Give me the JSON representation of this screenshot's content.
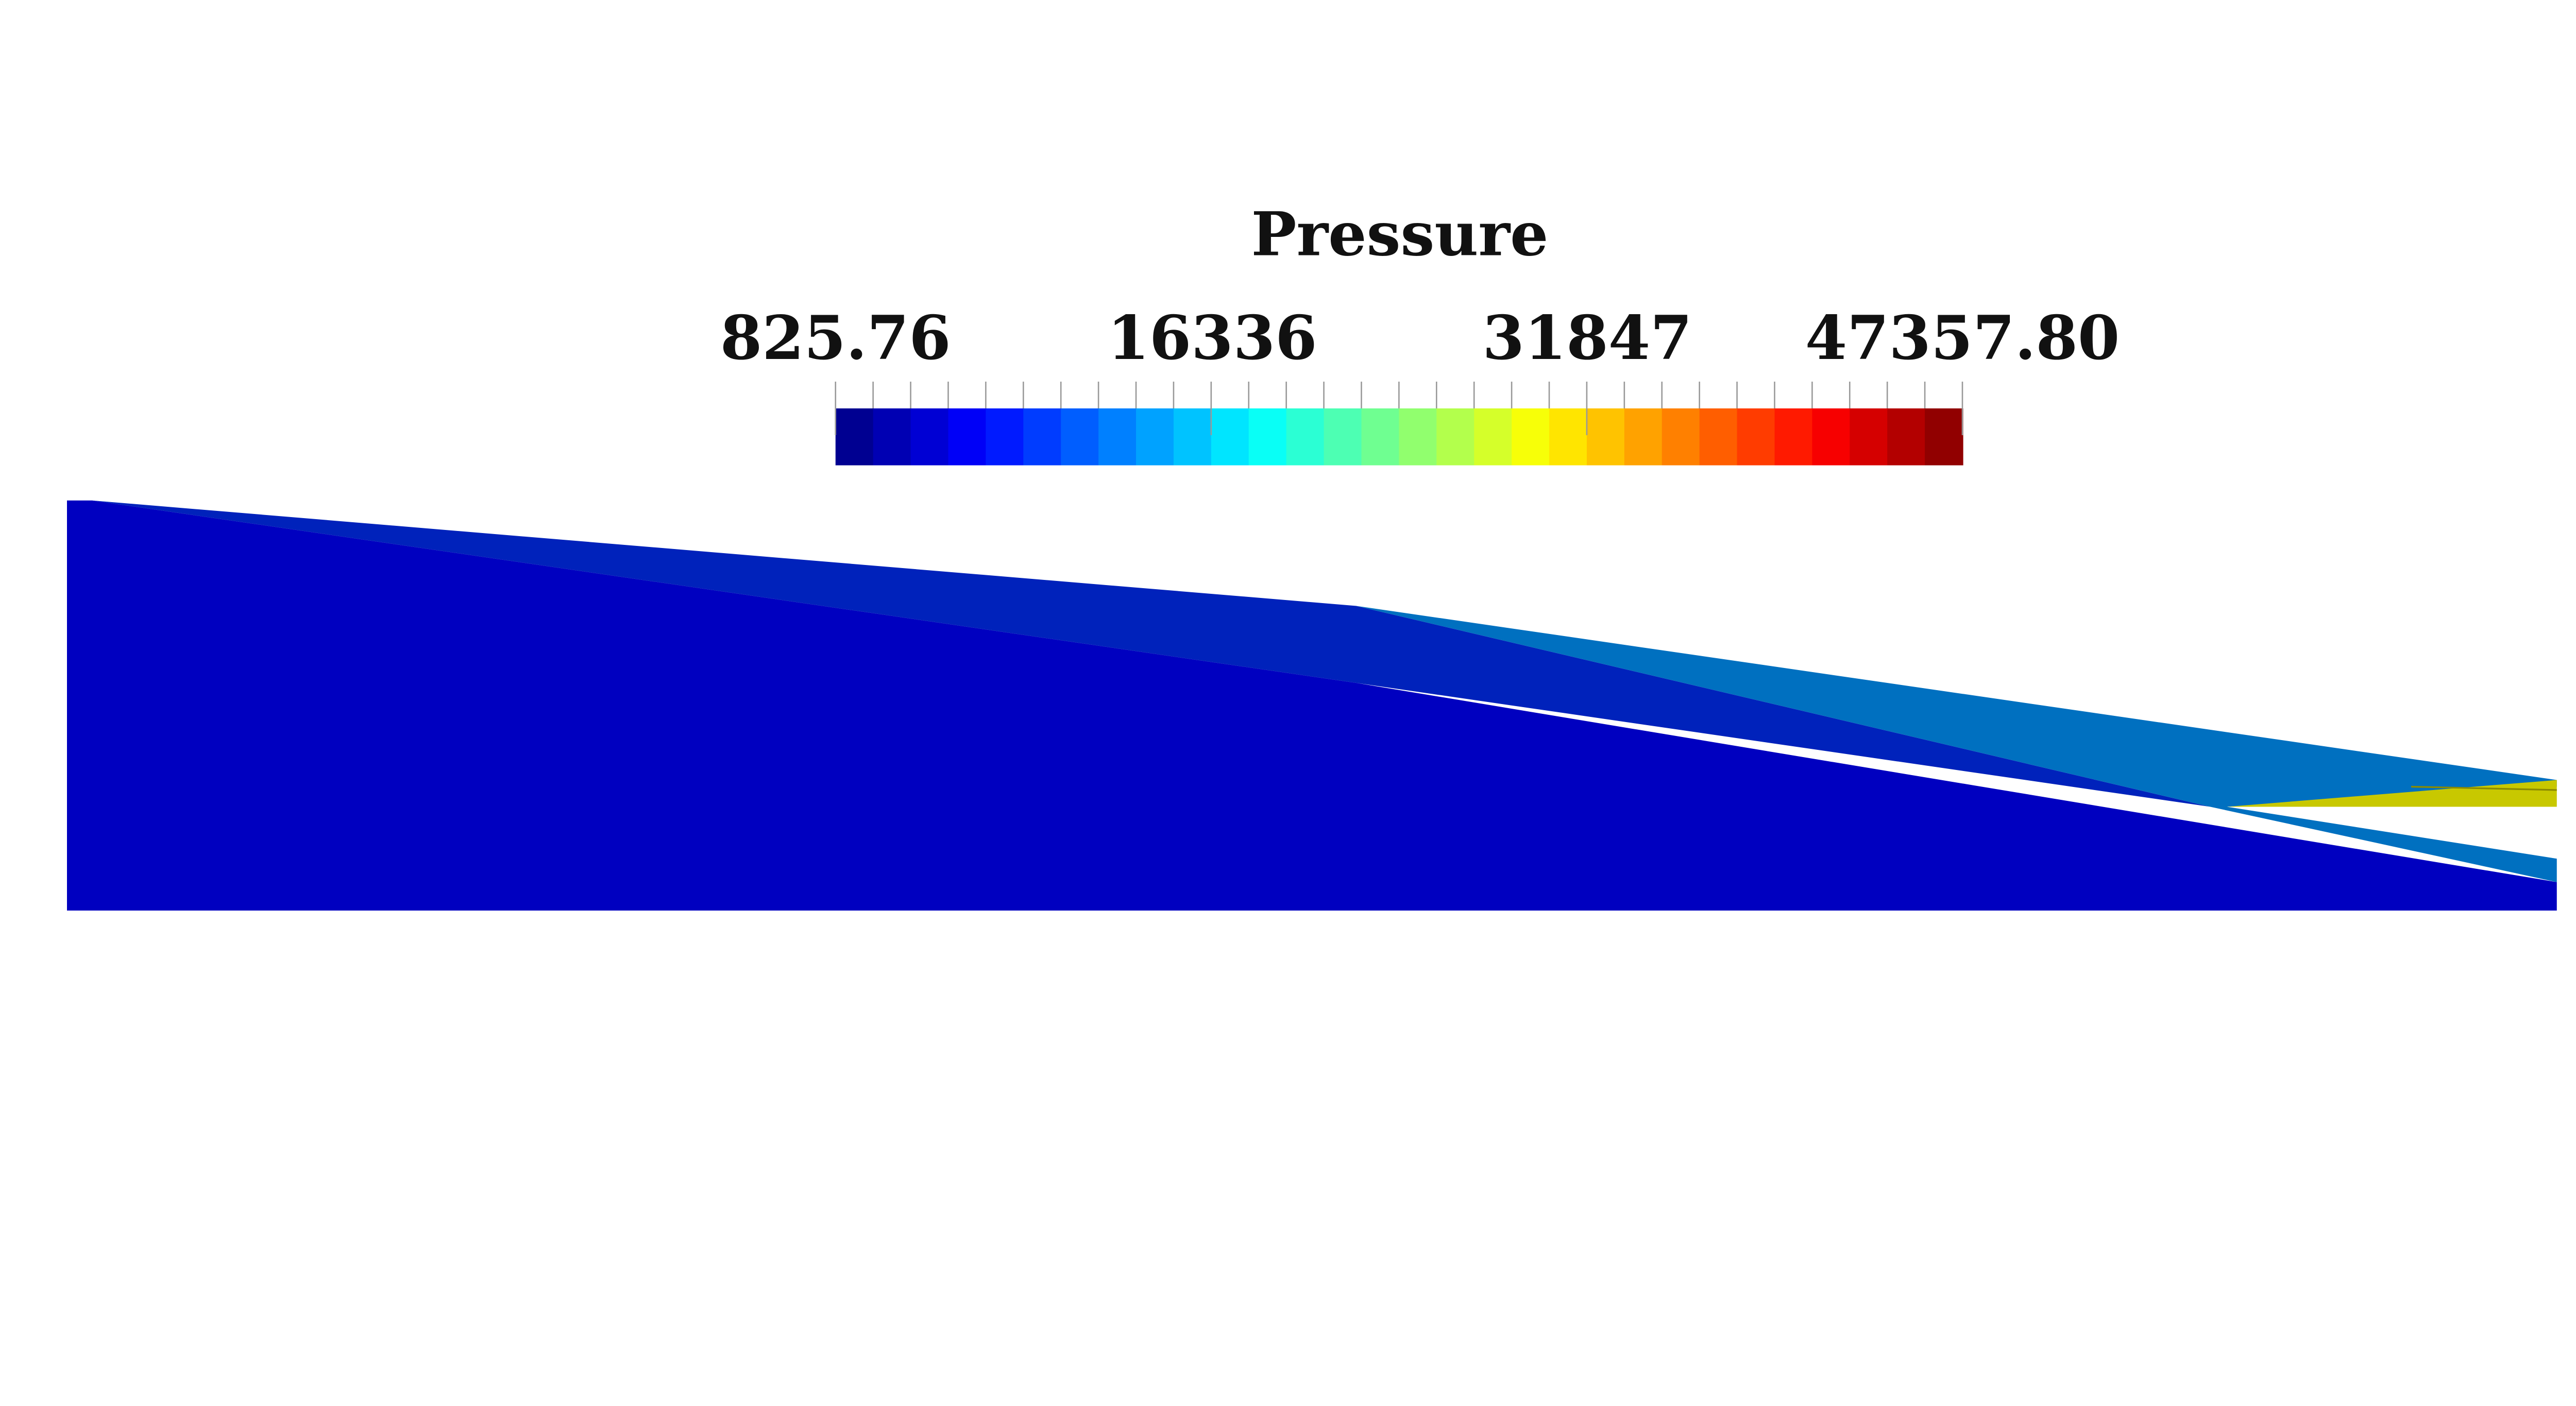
{
  "colorbar": {
    "title": "Pressure",
    "labels": [
      "825.76",
      "16336",
      "31847",
      "47357.80"
    ]
  }
}
